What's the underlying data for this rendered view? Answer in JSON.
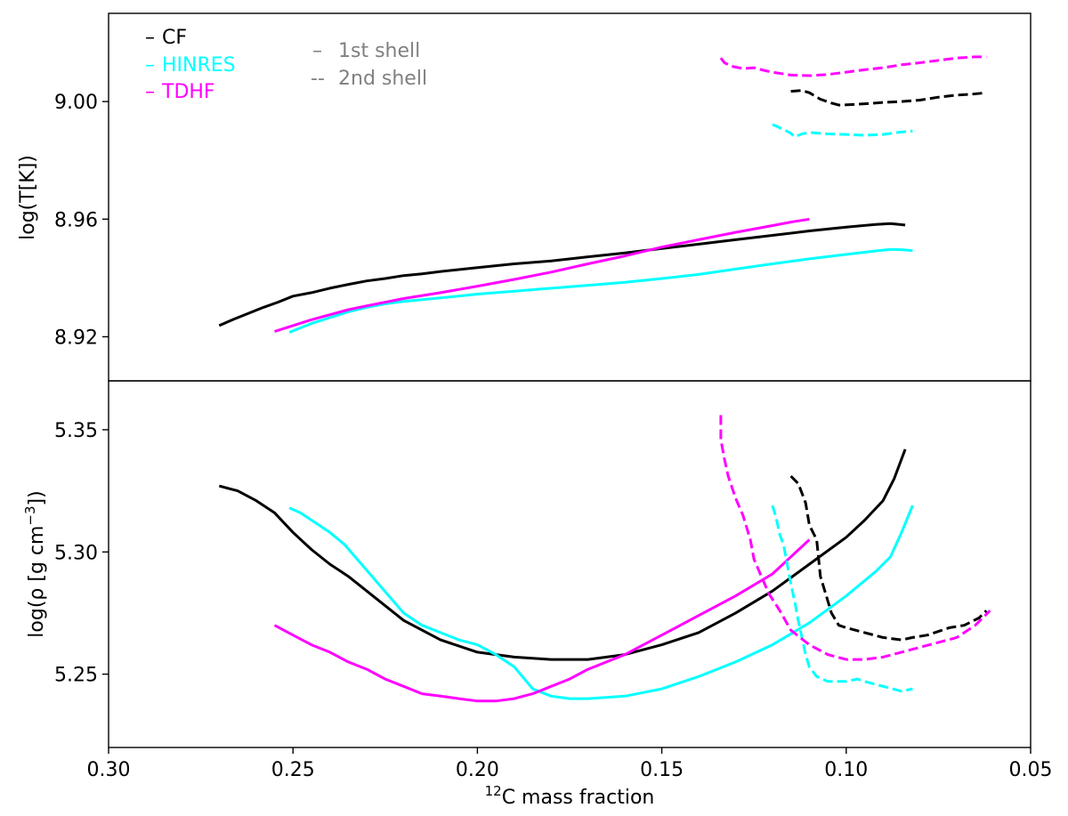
{
  "chart_data": [
    {
      "type": "line",
      "panel": "top",
      "ylabel": "log(T[K])",
      "xlim": [
        0.3,
        0.05
      ],
      "ylim": [
        8.905,
        9.03
      ],
      "yticks": [
        8.92,
        8.96,
        9.0
      ],
      "ytick_labels": [
        "8.92",
        "8.96",
        "9.00"
      ],
      "legend": {
        "placement": "top-left",
        "models": [
          {
            "label": "CF",
            "color": "#000000"
          },
          {
            "label": "HINRES",
            "color": "#00ffff"
          },
          {
            "label": "TDHF",
            "color": "#ff00ff"
          }
        ],
        "shells": [
          {
            "label": "1st shell",
            "marker": "–"
          },
          {
            "label": "2nd shell",
            "marker": "--"
          }
        ],
        "shell_color": "#808080"
      },
      "series": [
        {
          "model": "CF",
          "shell": "1st shell",
          "color": "#000000",
          "x": [
            0.27,
            0.266,
            0.262,
            0.258,
            0.254,
            0.25,
            0.245,
            0.24,
            0.235,
            0.23,
            0.225,
            0.22,
            0.215,
            0.21,
            0.2,
            0.19,
            0.18,
            0.17,
            0.16,
            0.15,
            0.14,
            0.13,
            0.12,
            0.11,
            0.1,
            0.092,
            0.088,
            0.084
          ],
          "y": [
            8.9238,
            8.926,
            8.928,
            8.93,
            8.9318,
            8.9338,
            8.935,
            8.9365,
            8.9378,
            8.939,
            8.9398,
            8.9408,
            8.9414,
            8.9422,
            8.9435,
            8.9448,
            8.9458,
            8.9472,
            8.9485,
            8.95,
            8.9515,
            8.953,
            8.9545,
            8.956,
            8.9573,
            8.9582,
            8.9585,
            8.958
          ]
        },
        {
          "model": "HINRES",
          "shell": "1st shell",
          "color": "#00ffff",
          "x": [
            0.251,
            0.248,
            0.245,
            0.24,
            0.235,
            0.23,
            0.225,
            0.22,
            0.21,
            0.2,
            0.19,
            0.18,
            0.17,
            0.16,
            0.15,
            0.14,
            0.13,
            0.12,
            0.11,
            0.1,
            0.092,
            0.088,
            0.085,
            0.082
          ],
          "y": [
            8.9215,
            8.923,
            8.9245,
            8.9265,
            8.9285,
            8.93,
            8.9312,
            8.932,
            8.9332,
            8.9345,
            8.9355,
            8.9365,
            8.9375,
            8.9385,
            8.9398,
            8.9412,
            8.943,
            8.9448,
            8.9465,
            8.948,
            8.9492,
            8.9497,
            8.9496,
            8.9493
          ]
        },
        {
          "model": "TDHF",
          "shell": "1st shell",
          "color": "#ff00ff",
          "x": [
            0.255,
            0.25,
            0.245,
            0.24,
            0.235,
            0.23,
            0.22,
            0.21,
            0.2,
            0.19,
            0.18,
            0.17,
            0.16,
            0.15,
            0.14,
            0.13,
            0.12,
            0.115,
            0.11
          ],
          "y": [
            8.9218,
            8.9238,
            8.9258,
            8.9275,
            8.9292,
            8.9305,
            8.933,
            8.935,
            8.9372,
            8.9395,
            8.942,
            8.9448,
            8.9475,
            8.9505,
            8.953,
            8.9555,
            8.9578,
            8.959,
            8.96
          ]
        },
        {
          "model": "CF",
          "shell": "2nd shell",
          "color": "#000000",
          "x": [
            0.115,
            0.112,
            0.11,
            0.107,
            0.104,
            0.102,
            0.098,
            0.094,
            0.09,
            0.085,
            0.08,
            0.075,
            0.07,
            0.066,
            0.062
          ],
          "y": [
            9.0035,
            9.0038,
            9.003,
            9.0008,
            8.9995,
            8.9988,
            8.999,
            8.9993,
            8.9997,
            9.0,
            9.0005,
            9.0015,
            9.0022,
            9.0025,
            9.003
          ]
        },
        {
          "model": "HINRES",
          "shell": "2nd shell",
          "color": "#00ffff",
          "x": [
            0.12,
            0.117,
            0.115,
            0.114,
            0.112,
            0.11,
            0.105,
            0.1,
            0.095,
            0.09,
            0.086,
            0.082
          ],
          "y": [
            8.9922,
            8.9905,
            8.9892,
            8.988,
            8.989,
            8.9895,
            8.989,
            8.9888,
            8.9885,
            8.9888,
            8.9895,
            8.99
          ]
        },
        {
          "model": "TDHF",
          "shell": "2nd shell",
          "color": "#ff00ff",
          "x": [
            0.134,
            0.133,
            0.131,
            0.128,
            0.125,
            0.122,
            0.12,
            0.115,
            0.11,
            0.105,
            0.1,
            0.095,
            0.09,
            0.085,
            0.08,
            0.075,
            0.07,
            0.065,
            0.062
          ],
          "y": [
            9.0148,
            9.0132,
            9.012,
            9.0112,
            9.0115,
            9.0105,
            9.01,
            9.009,
            9.0088,
            9.0092,
            9.01,
            9.0108,
            9.0115,
            9.0125,
            9.0132,
            9.014,
            9.0148,
            9.0152,
            9.0152
          ]
        }
      ]
    },
    {
      "type": "line",
      "panel": "bottom",
      "xlabel_pre": "12",
      "xlabel_main": "C mass fraction",
      "ylabel_main": "log(ρ [g cm",
      "ylabel_sup": "−3",
      "ylabel_end": "])",
      "xlim": [
        0.3,
        0.05
      ],
      "ylim": [
        5.22,
        5.37
      ],
      "xticks": [
        0.3,
        0.25,
        0.2,
        0.15,
        0.1,
        0.05
      ],
      "xtick_labels": [
        "0.30",
        "0.25",
        "0.20",
        "0.15",
        "0.10",
        "0.05"
      ],
      "yticks": [
        5.25,
        5.3,
        5.35
      ],
      "ytick_labels": [
        "5.25",
        "5.30",
        "5.35"
      ],
      "series": [
        {
          "model": "CF",
          "shell": "1st shell",
          "color": "#000000",
          "x": [
            0.27,
            0.265,
            0.26,
            0.255,
            0.25,
            0.245,
            0.24,
            0.235,
            0.23,
            0.225,
            0.22,
            0.21,
            0.2,
            0.19,
            0.18,
            0.17,
            0.16,
            0.15,
            0.14,
            0.13,
            0.12,
            0.11,
            0.1,
            0.095,
            0.09,
            0.087,
            0.084
          ],
          "y": [
            5.327,
            5.325,
            5.321,
            5.316,
            5.308,
            5.301,
            5.295,
            5.29,
            5.284,
            5.278,
            5.272,
            5.264,
            5.259,
            5.257,
            5.256,
            5.256,
            5.258,
            5.262,
            5.267,
            5.275,
            5.284,
            5.295,
            5.306,
            5.313,
            5.321,
            5.33,
            5.342
          ]
        },
        {
          "model": "HINRES",
          "shell": "1st shell",
          "color": "#00ffff",
          "x": [
            0.251,
            0.248,
            0.244,
            0.24,
            0.236,
            0.232,
            0.228,
            0.224,
            0.22,
            0.215,
            0.21,
            0.205,
            0.2,
            0.195,
            0.19,
            0.185,
            0.18,
            0.175,
            0.17,
            0.16,
            0.15,
            0.14,
            0.13,
            0.12,
            0.11,
            0.1,
            0.092,
            0.088,
            0.085,
            0.082
          ],
          "y": [
            5.318,
            5.316,
            5.312,
            5.308,
            5.303,
            5.296,
            5.289,
            5.282,
            5.275,
            5.27,
            5.267,
            5.264,
            5.262,
            5.258,
            5.253,
            5.244,
            5.241,
            5.24,
            5.24,
            5.241,
            5.244,
            5.249,
            5.255,
            5.262,
            5.271,
            5.282,
            5.292,
            5.298,
            5.308,
            5.319
          ]
        },
        {
          "model": "TDHF",
          "shell": "1st shell",
          "color": "#ff00ff",
          "x": [
            0.255,
            0.25,
            0.245,
            0.24,
            0.235,
            0.23,
            0.225,
            0.22,
            0.215,
            0.21,
            0.205,
            0.2,
            0.195,
            0.19,
            0.185,
            0.18,
            0.175,
            0.17,
            0.16,
            0.15,
            0.14,
            0.13,
            0.12,
            0.115,
            0.11
          ],
          "y": [
            5.27,
            5.266,
            5.262,
            5.259,
            5.255,
            5.252,
            5.248,
            5.245,
            5.242,
            5.241,
            5.24,
            5.239,
            5.239,
            5.24,
            5.242,
            5.245,
            5.248,
            5.252,
            5.258,
            5.266,
            5.274,
            5.282,
            5.291,
            5.298,
            5.305
          ]
        },
        {
          "model": "CF",
          "shell": "2nd shell",
          "color": "#000000",
          "x": [
            0.115,
            0.113,
            0.112,
            0.111,
            0.11,
            0.108,
            0.107,
            0.105,
            0.104,
            0.102,
            0.1,
            0.095,
            0.09,
            0.085,
            0.082,
            0.078,
            0.072,
            0.068,
            0.064,
            0.062
          ],
          "y": [
            5.331,
            5.328,
            5.324,
            5.32,
            5.311,
            5.305,
            5.29,
            5.28,
            5.275,
            5.27,
            5.269,
            5.267,
            5.265,
            5.264,
            5.265,
            5.266,
            5.269,
            5.27,
            5.273,
            5.276
          ]
        },
        {
          "model": "HINRES",
          "shell": "2nd shell",
          "color": "#00ffff",
          "x": [
            0.12,
            0.119,
            0.118,
            0.117,
            0.116,
            0.115,
            0.114,
            0.113,
            0.112,
            0.111,
            0.11,
            0.108,
            0.105,
            0.1,
            0.097,
            0.095,
            0.09,
            0.085,
            0.082
          ],
          "y": [
            5.319,
            5.314,
            5.307,
            5.303,
            5.295,
            5.287,
            5.28,
            5.272,
            5.265,
            5.258,
            5.253,
            5.249,
            5.247,
            5.247,
            5.248,
            5.247,
            5.245,
            5.243,
            5.244
          ]
        },
        {
          "model": "TDHF",
          "shell": "2nd shell",
          "color": "#ff00ff",
          "x": [
            0.134,
            0.134,
            0.133,
            0.132,
            0.13,
            0.128,
            0.126,
            0.125,
            0.123,
            0.121,
            0.118,
            0.115,
            0.11,
            0.105,
            0.1,
            0.095,
            0.09,
            0.085,
            0.08,
            0.075,
            0.07,
            0.065,
            0.061
          ],
          "y": [
            5.356,
            5.346,
            5.338,
            5.331,
            5.322,
            5.315,
            5.305,
            5.297,
            5.29,
            5.283,
            5.276,
            5.268,
            5.262,
            5.258,
            5.256,
            5.256,
            5.257,
            5.259,
            5.261,
            5.263,
            5.265,
            5.27,
            5.276
          ]
        }
      ]
    }
  ]
}
